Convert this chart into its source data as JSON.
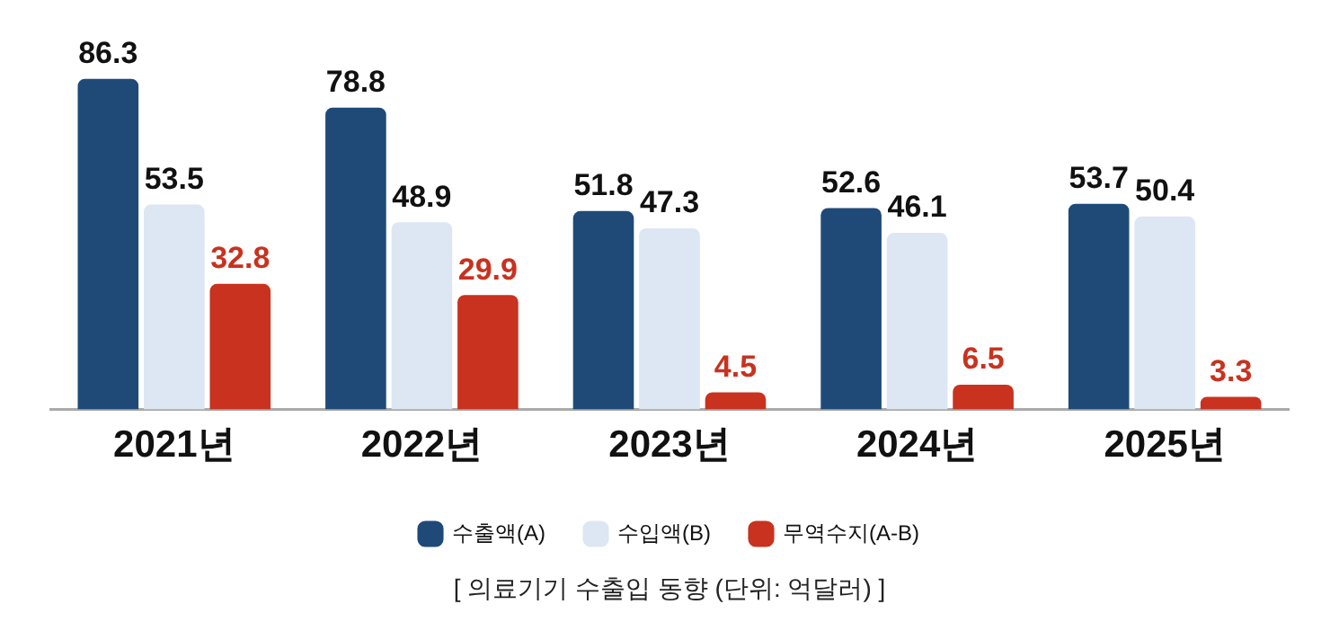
{
  "chart_data": {
    "type": "bar",
    "categories": [
      "2021년",
      "2022년",
      "2023년",
      "2024년",
      "2025년"
    ],
    "series": [
      {
        "name": "수출액(A)",
        "color": "#1f4a78",
        "values": [
          86.3,
          78.8,
          51.8,
          52.6,
          53.7
        ]
      },
      {
        "name": "수입액(B)",
        "color": "#dde7f3",
        "values": [
          53.5,
          48.9,
          47.3,
          46.1,
          50.4
        ]
      },
      {
        "name": "무역수지(A-B)",
        "color": "#c8321f",
        "values": [
          32.8,
          29.9,
          4.5,
          6.5,
          3.3
        ]
      }
    ],
    "data_labels": true,
    "legend": "bottom",
    "grid": false,
    "annotations": [
      "[ 의료기기 수출입 동향 (단위: 억달러) ]"
    ]
  }
}
